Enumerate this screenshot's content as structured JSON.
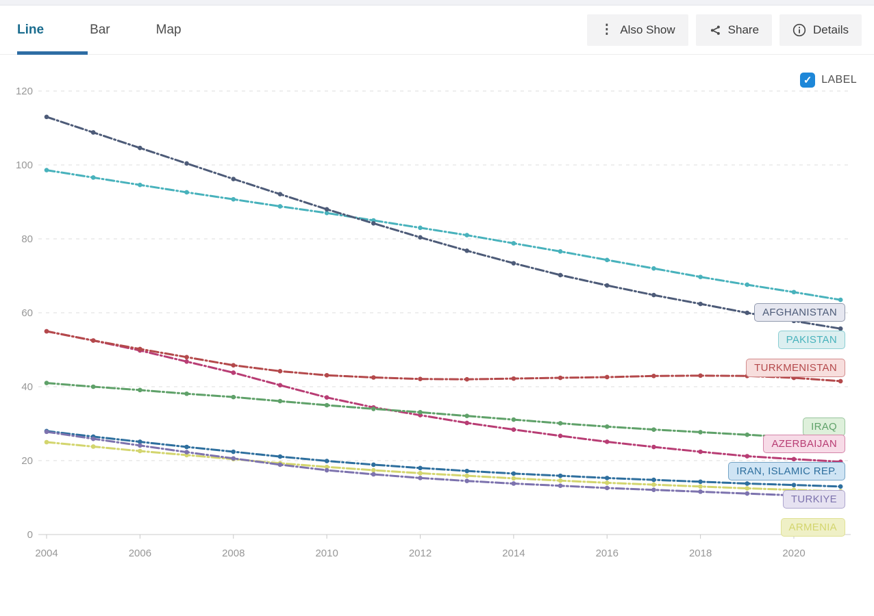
{
  "header": {
    "tabs": [
      {
        "label": "Line",
        "active": true
      },
      {
        "label": "Bar",
        "active": false
      },
      {
        "label": "Map",
        "active": false
      }
    ],
    "buttons": [
      {
        "label": "Also Show",
        "icon": "kebab-menu-icon"
      },
      {
        "label": "Share",
        "icon": "share-icon"
      },
      {
        "label": "Details",
        "icon": "info-icon"
      }
    ]
  },
  "label_toggle": {
    "label": "LABEL",
    "checked": true,
    "color": "#1e87d8"
  },
  "colors": {
    "active_tab": "#1a6c8e",
    "tab_underline": "#2e6da4",
    "grid": "#dcdcdc",
    "axis_text": "#979797"
  },
  "chart_data": {
    "type": "line",
    "x": [
      2004,
      2005,
      2006,
      2007,
      2008,
      2009,
      2010,
      2011,
      2012,
      2013,
      2014,
      2015,
      2016,
      2017,
      2018,
      2019,
      2020,
      2021
    ],
    "x_axis_tick_labels": [
      2004,
      2006,
      2008,
      2010,
      2012,
      2014,
      2016,
      2018,
      2020
    ],
    "yticks": [
      0,
      20,
      40,
      60,
      80,
      100,
      120
    ],
    "ylim": [
      0,
      120
    ],
    "grid": "horizontal-dashed",
    "legend": "end-of-line-labels",
    "marker": "point-per-year-dashed-line",
    "series": [
      {
        "name": "AFGHANISTAN",
        "color": "#4d5b78",
        "label_bg": "#e6e7f0",
        "values": [
          113,
          108.8,
          104.6,
          100.4,
          96.2,
          92.1,
          88,
          84.2,
          80.4,
          76.8,
          73.4,
          70.2,
          67.4,
          64.8,
          62.4,
          60,
          57.8,
          55.7
        ]
      },
      {
        "name": "PAKISTAN",
        "color": "#48b2bc",
        "label_bg": "#dceff0",
        "values": [
          98.6,
          96.6,
          94.6,
          92.6,
          90.7,
          88.8,
          87,
          85,
          83,
          81,
          78.8,
          76.6,
          74.3,
          72,
          69.7,
          67.6,
          65.6,
          63.5
        ]
      },
      {
        "name": "TURKMENISTAN",
        "color": "#b4494b",
        "label_bg": "#f7dedd",
        "values": [
          55,
          52.5,
          50.2,
          48,
          45.8,
          44.2,
          43.1,
          42.5,
          42.1,
          42,
          42.2,
          42.4,
          42.6,
          42.9,
          43,
          42.9,
          42.4,
          41.5
        ]
      },
      {
        "name": "IRAQ",
        "color": "#5fa169",
        "label_bg": "#def0db",
        "values": [
          41,
          40,
          39.1,
          38.1,
          37.2,
          36.1,
          35,
          34,
          33.1,
          32.1,
          31.1,
          30.1,
          29.2,
          28.4,
          27.7,
          27,
          26.3,
          25.7
        ]
      },
      {
        "name": "AZERBAIJAN",
        "color": "#b83d74",
        "label_bg": "#f7dbe7",
        "values": [
          55,
          52.5,
          49.8,
          46.8,
          43.8,
          40.4,
          37.1,
          34.4,
          32.3,
          30.2,
          28.4,
          26.7,
          25.1,
          23.7,
          22.4,
          21.2,
          20.4,
          19.7
        ]
      },
      {
        "name": "IRAN, ISLAMIC REP.",
        "color": "#2e6f9e",
        "label_bg": "#cfe4f4",
        "values": [
          28,
          26.5,
          25.1,
          23.7,
          22.4,
          21.1,
          19.9,
          18.9,
          18,
          17.2,
          16.5,
          15.9,
          15.3,
          14.8,
          14.3,
          13.8,
          13.4,
          13
        ]
      },
      {
        "name": "TURKIYE",
        "color": "#7d73ae",
        "label_bg": "#e6e2f1",
        "values": [
          27.8,
          25.9,
          24.1,
          22.3,
          20.6,
          18.9,
          17.4,
          16.3,
          15.3,
          14.5,
          13.8,
          13.2,
          12.6,
          12.1,
          11.6,
          11.1,
          10.6,
          10.1
        ]
      },
      {
        "name": "ARMENIA",
        "color": "#d3d56e",
        "label_bg": "#eff0c6",
        "values": [
          25,
          23.8,
          22.6,
          21.5,
          20.4,
          19.3,
          18.3,
          17.4,
          16.6,
          15.9,
          15.2,
          14.6,
          14,
          13.5,
          13,
          12.5,
          12.1,
          11.7
        ]
      }
    ]
  }
}
